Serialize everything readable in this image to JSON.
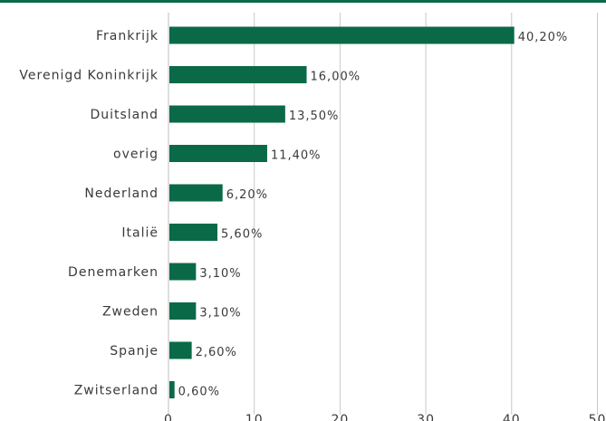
{
  "colors": {
    "bar": "#0a6a47",
    "top_rule": "#0a6a47",
    "grid": "#c8c8c8",
    "axis": "#bdbdbd",
    "text": "#3a3a3a"
  },
  "chart_data": {
    "type": "bar",
    "orientation": "horizontal",
    "categories": [
      "Frankrijk",
      "Verenigd Koninkrijk",
      "Duitsland",
      "overig",
      "Nederland",
      "Italië",
      "Denemarken",
      "Zweden",
      "Spanje",
      "Zwitserland"
    ],
    "values": [
      40.2,
      16.0,
      13.5,
      11.4,
      6.2,
      5.6,
      3.1,
      3.1,
      2.6,
      0.6
    ],
    "value_labels": [
      "40,20%",
      "16,00%",
      "13,50%",
      "11,40%",
      "6,20%",
      "5,60%",
      "3,10%",
      "3,10%",
      "2,60%",
      "0,60%"
    ],
    "xlim": [
      0,
      50
    ],
    "xticks": [
      0,
      10,
      20,
      30,
      40,
      50
    ],
    "xtick_labels": [
      "0",
      "10",
      "20",
      "30",
      "40",
      "50"
    ],
    "grid": true
  }
}
